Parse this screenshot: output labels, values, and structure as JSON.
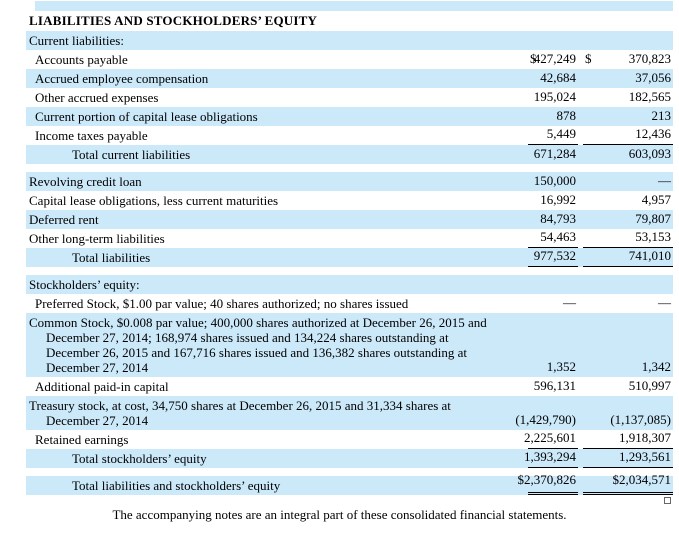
{
  "page": {
    "background_color": "#ffffff",
    "shade_color": "#cce9fa",
    "text_color": "#000000"
  },
  "table": {
    "rows": [
      {
        "type": "header",
        "label": "LIABILITIES AND STOCKHOLDERS’ EQUITY",
        "indent": 0,
        "shade": false,
        "v1": "",
        "v2": "",
        "rule": "none"
      },
      {
        "type": "section",
        "label": "Current liabilities:",
        "indent": 0,
        "shade": true,
        "v1": "",
        "v2": "",
        "rule": "none"
      },
      {
        "type": "item",
        "label": "Accounts payable",
        "indent": 1,
        "shade": false,
        "v1": "427,249",
        "v2": "370,823",
        "d1": "$",
        "d2": "$",
        "rule": "none"
      },
      {
        "type": "item",
        "label": "Accrued employee compensation",
        "indent": 1,
        "shade": true,
        "v1": "42,684",
        "v2": "37,056",
        "rule": "none"
      },
      {
        "type": "item",
        "label": "Other accrued expenses",
        "indent": 1,
        "shade": false,
        "v1": "195,024",
        "v2": "182,565",
        "rule": "none"
      },
      {
        "type": "item",
        "label": "Current portion of capital lease obligations",
        "indent": 1,
        "shade": true,
        "v1": "878",
        "v2": "213",
        "rule": "none"
      },
      {
        "type": "item",
        "label": "Income taxes payable",
        "indent": 1,
        "shade": false,
        "v1": "5,449",
        "v2": "12,436",
        "rule": "single"
      },
      {
        "type": "total",
        "label": "Total current liabilities",
        "indent": 2,
        "shade": true,
        "v1": "671,284",
        "v2": "603,093",
        "rule": "none"
      },
      {
        "type": "spacer"
      },
      {
        "type": "item",
        "label": "Revolving credit loan",
        "indent": 0,
        "shade": true,
        "v1": "150,000",
        "v2": "—",
        "rule": "none"
      },
      {
        "type": "item",
        "label": "Capital lease obligations, less current maturities",
        "indent": 0,
        "shade": false,
        "v1": "16,992",
        "v2": "4,957",
        "rule": "none"
      },
      {
        "type": "item",
        "label": "Deferred rent",
        "indent": 0,
        "shade": true,
        "v1": "84,793",
        "v2": "79,807",
        "rule": "none"
      },
      {
        "type": "item",
        "label": "Other long-term liabilities",
        "indent": 0,
        "shade": false,
        "v1": "54,463",
        "v2": "53,153",
        "rule": "single"
      },
      {
        "type": "total",
        "label": "Total liabilities",
        "indent": 2,
        "shade": true,
        "v1": "977,532",
        "v2": "741,010",
        "rule": "single"
      },
      {
        "type": "spacer"
      },
      {
        "type": "section",
        "label": "Stockholders’ equity:",
        "indent": 0,
        "shade": true,
        "v1": "",
        "v2": "",
        "rule": "none"
      },
      {
        "type": "item",
        "label": "Preferred Stock, $1.00 par value; 40 shares authorized; no shares issued",
        "indent": 1,
        "shade": false,
        "v1": "—",
        "v2": "—",
        "rule": "none"
      },
      {
        "type": "multi",
        "lines": [
          "Common Stock, $0.008 par value; 400,000 shares authorized at December 26, 2015 and",
          "December 27, 2014; 168,974 shares issued and 134,224 shares outstanding at",
          "December 26, 2015 and 167,716 shares issued and 136,382 shares outstanding at",
          "December 27, 2014"
        ],
        "indent": 0,
        "shade": true,
        "v1": "1,352",
        "v2": "1,342",
        "rule": "none"
      },
      {
        "type": "item",
        "label": "Additional paid-in capital",
        "indent": 1,
        "shade": false,
        "v1": "596,131",
        "v2": "510,997",
        "rule": "none"
      },
      {
        "type": "multi",
        "lines": [
          "Treasury stock, at cost, 34,750 shares at December 26, 2015 and 31,334 shares at",
          "December 27, 2014"
        ],
        "indent": 0,
        "shade": true,
        "v1": "(1,429,790)",
        "v2": "(1,137,085)",
        "rule": "none"
      },
      {
        "type": "item",
        "label": "Retained earnings",
        "indent": 1,
        "shade": false,
        "v1": "2,225,601",
        "v2": "1,918,307",
        "rule": "single"
      },
      {
        "type": "total",
        "label": "Total stockholders’ equity",
        "indent": 2,
        "shade": true,
        "v1": "1,393,294",
        "v2": "1,293,561",
        "rule": "single"
      },
      {
        "type": "spacer"
      },
      {
        "type": "total",
        "label": "Total liabilities and stockholders’ equity",
        "indent": 2,
        "shade": true,
        "v1": "$2,370,826",
        "v2": "$2,034,571",
        "rule": "double"
      }
    ]
  },
  "footer": {
    "text": "The accompanying notes are an integral part of these consolidated financial statements."
  }
}
